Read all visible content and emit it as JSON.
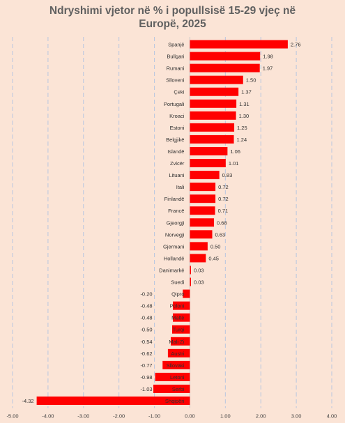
{
  "chart_data": {
    "type": "bar",
    "orientation": "horizontal",
    "title_line1": "Ndryshimi vjetor në % i popullsisë 15-29 vjeç në",
    "title_line2": "Europë, 2025",
    "xlim": [
      -5,
      4
    ],
    "x_ticks": [
      "-5.00",
      "-4.00",
      "-3.00",
      "-2.00",
      "-1.00",
      "0.00",
      "1.00",
      "2.00",
      "3.00",
      "4.00"
    ],
    "grid": "vertical-dashed",
    "bar_color": "#ff0000",
    "categories": [
      "Spanjë",
      "Bullgari",
      "Rumani",
      "Slloveni",
      "Çeki",
      "Portugali",
      "Kroaci",
      "Estoni",
      "Belgjikë",
      "Islandë",
      "Zvicër",
      "Lituani",
      "Itali",
      "Finlandë",
      "Francë",
      "Gjeorgji",
      "Norvegji",
      "Gjermani",
      "Hollandë",
      "Danimarkë",
      "Suedi",
      "Qipro",
      "Poloni",
      "Maltë",
      "Turqi",
      "Mali Zi",
      "Austri",
      "Sllovaki",
      "Letoni",
      "Serbi",
      "Shqipëri"
    ],
    "values": [
      2.76,
      1.98,
      1.97,
      1.5,
      1.37,
      1.31,
      1.3,
      1.25,
      1.24,
      1.06,
      1.01,
      0.83,
      0.72,
      0.72,
      0.71,
      0.68,
      0.63,
      0.5,
      0.45,
      0.03,
      0.03,
      -0.2,
      -0.48,
      -0.48,
      -0.5,
      -0.54,
      -0.62,
      -0.77,
      -0.98,
      -1.03,
      -4.32
    ],
    "value_labels": [
      "2.76",
      "1.98",
      "1.97",
      "1.50",
      "1.37",
      "1.31",
      "1.30",
      "1.25",
      "1.24",
      "1.06",
      "1.01",
      "0.83",
      "0.72",
      "0.72",
      "0.71",
      "0.68",
      "0.63",
      "0.50",
      "0.45",
      "0.03",
      "0.03",
      "-0.20",
      "-0.48",
      "-0.48",
      "-0.50",
      "-0.54",
      "-0.62",
      "-0.77",
      "-0.98",
      "-1.03",
      "-4.32"
    ]
  }
}
